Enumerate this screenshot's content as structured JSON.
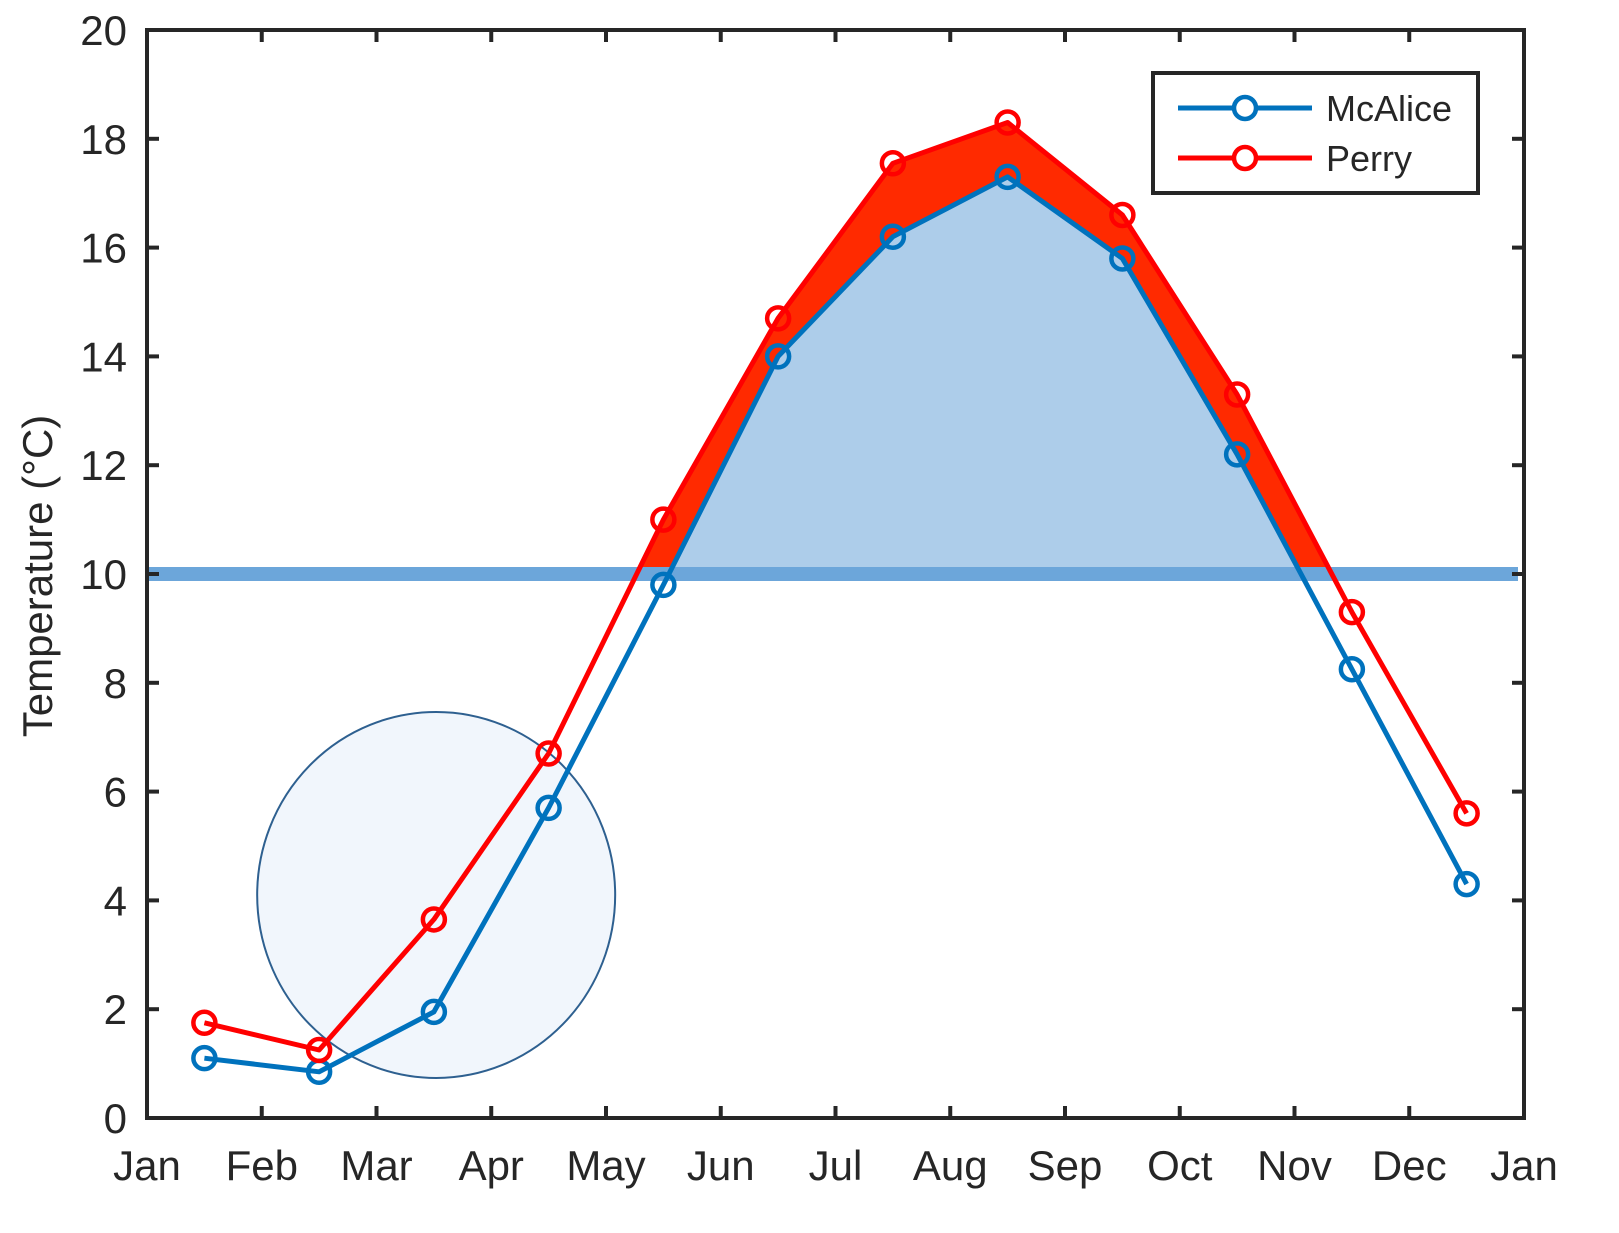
{
  "chart_data": {
    "type": "line",
    "title": "",
    "xlabel": "",
    "ylabel": "Temperature (°C)",
    "xlim": [
      0,
      12
    ],
    "ylim": [
      0,
      20
    ],
    "x_tick_labels": [
      "Jan",
      "Feb",
      "Mar",
      "Apr",
      "May",
      "Jun",
      "Jul",
      "Aug",
      "Sep",
      "Oct",
      "Nov",
      "Dec",
      "Jan"
    ],
    "y_ticks": [
      0,
      2,
      4,
      6,
      8,
      10,
      12,
      14,
      16,
      18,
      20
    ],
    "x": [
      0.5,
      1.5,
      2.5,
      3.5,
      4.5,
      5.5,
      6.5,
      7.5,
      8.5,
      9.5,
      10.5,
      11.5
    ],
    "series": [
      {
        "name": "McAlice",
        "color": "#0072BD",
        "marker": "circle",
        "values": [
          1.1,
          0.85,
          1.95,
          5.7,
          9.8,
          14.0,
          16.2,
          17.3,
          15.8,
          12.2,
          8.25,
          4.3
        ]
      },
      {
        "name": "Perry",
        "color": "#FF0000",
        "marker": "circle",
        "values": [
          1.75,
          1.25,
          3.65,
          6.7,
          11.0,
          14.7,
          17.55,
          18.3,
          16.6,
          13.3,
          9.3,
          5.6
        ]
      }
    ],
    "threshold": {
      "value": 10,
      "color": "#6CA6DA"
    },
    "annotations": {
      "perry_fill_color": "#FF2A00",
      "mcalice_fill_color": "#ADCDEA",
      "highlight_circle_color": "#EEF4FB"
    },
    "grid": false,
    "legend": {
      "position": "top-right",
      "entries": [
        "McAlice",
        "Perry"
      ]
    }
  }
}
